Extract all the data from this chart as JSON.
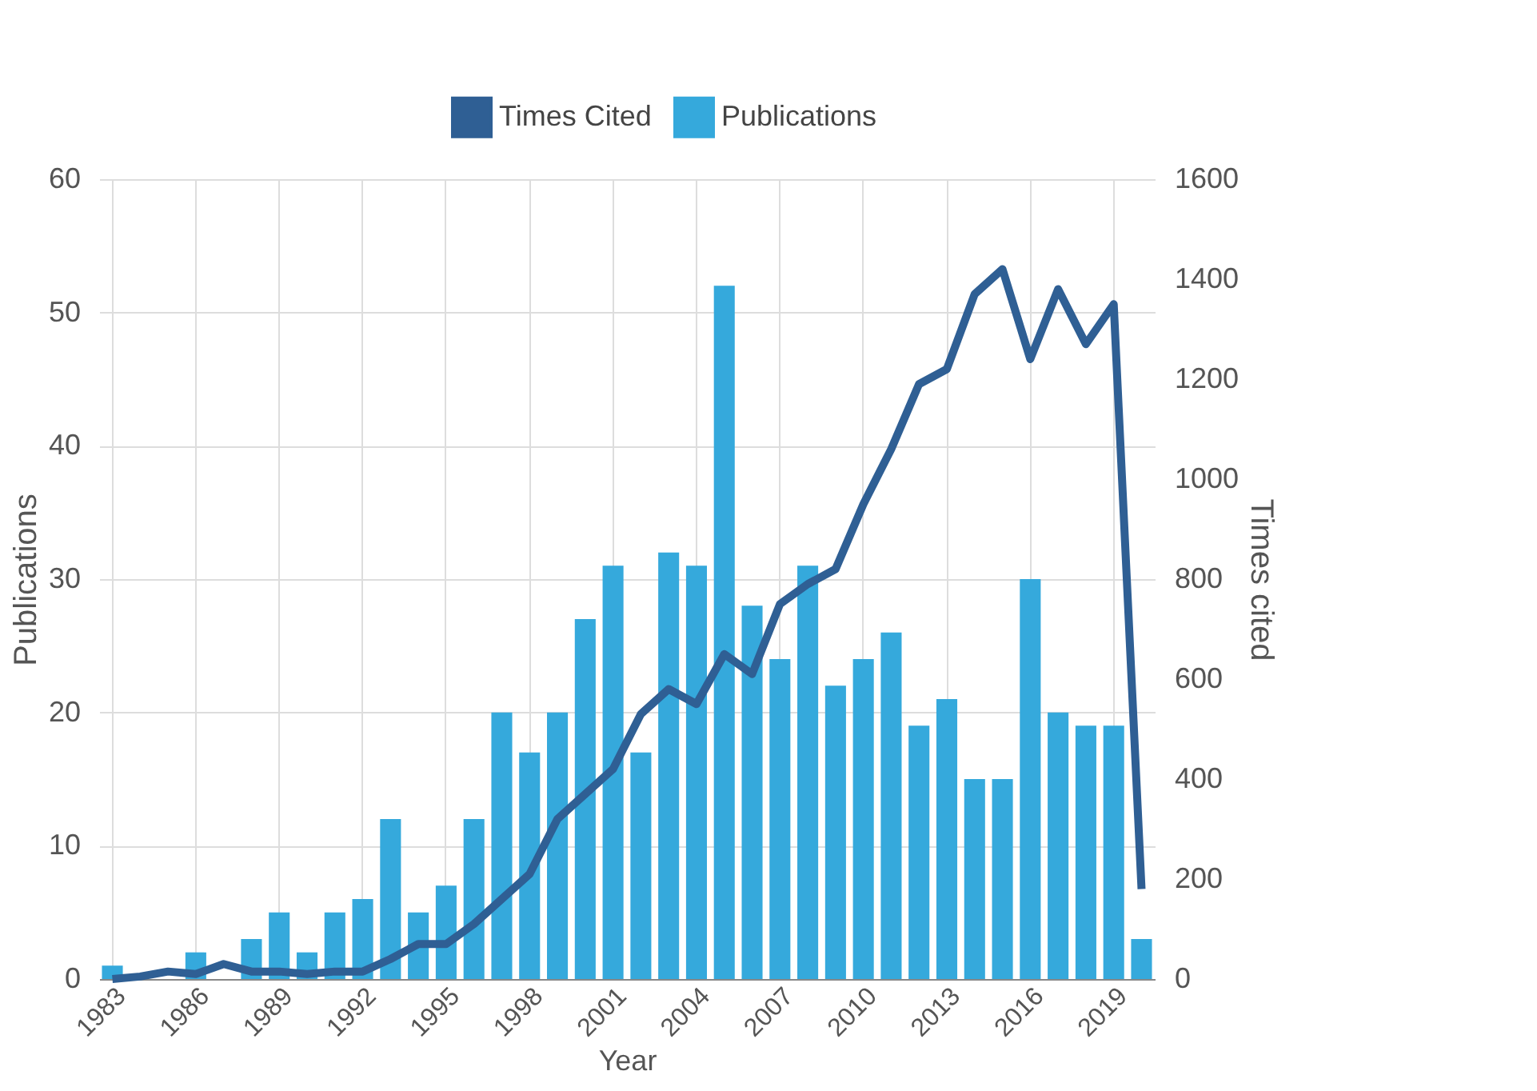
{
  "chart_data": {
    "type": "bar",
    "xlabel": "Year",
    "ylabel": "Publications",
    "y2label": "Times cited",
    "categories": [
      "1983",
      null,
      null,
      "1986",
      null,
      null,
      "1989",
      null,
      null,
      "1992",
      null,
      null,
      "1995",
      null,
      null,
      "1998",
      null,
      null,
      "2001",
      null,
      null,
      "2004",
      null,
      null,
      "2007",
      null,
      null,
      "2010",
      null,
      null,
      "2013",
      null,
      null,
      "2016",
      null,
      null,
      "2019",
      null
    ],
    "series": [
      {
        "name": "Times Cited",
        "type": "line",
        "axis": "y2",
        "color": "#2f5f94",
        "values": [
          0,
          5,
          15,
          10,
          30,
          15,
          15,
          10,
          15,
          15,
          40,
          70,
          70,
          110,
          160,
          210,
          320,
          370,
          420,
          530,
          580,
          550,
          650,
          610,
          750,
          790,
          820,
          950,
          1060,
          1190,
          1220,
          1370,
          1420,
          1240,
          1380,
          1270,
          1350,
          180
        ]
      },
      {
        "name": "Publications",
        "color": "#35a9dc",
        "values": [
          1,
          0,
          0,
          2,
          0,
          3,
          5,
          2,
          5,
          6,
          12,
          5,
          7,
          12,
          20,
          17,
          20,
          27,
          31,
          17,
          32,
          31,
          52,
          28,
          24,
          31,
          22,
          24,
          26,
          19,
          21,
          15,
          15,
          30,
          20,
          19,
          19,
          3
        ]
      }
    ],
    "ylim": [
      0,
      60
    ],
    "yticks": [
      0,
      10,
      20,
      30,
      40,
      50,
      60
    ],
    "y2lim": [
      0,
      1600
    ],
    "y2ticks": [
      0,
      200,
      400,
      600,
      800,
      1000,
      1200,
      1400,
      1600
    ],
    "grid": true,
    "legend": "top",
    "marker": "none",
    "line_style": "solid"
  }
}
